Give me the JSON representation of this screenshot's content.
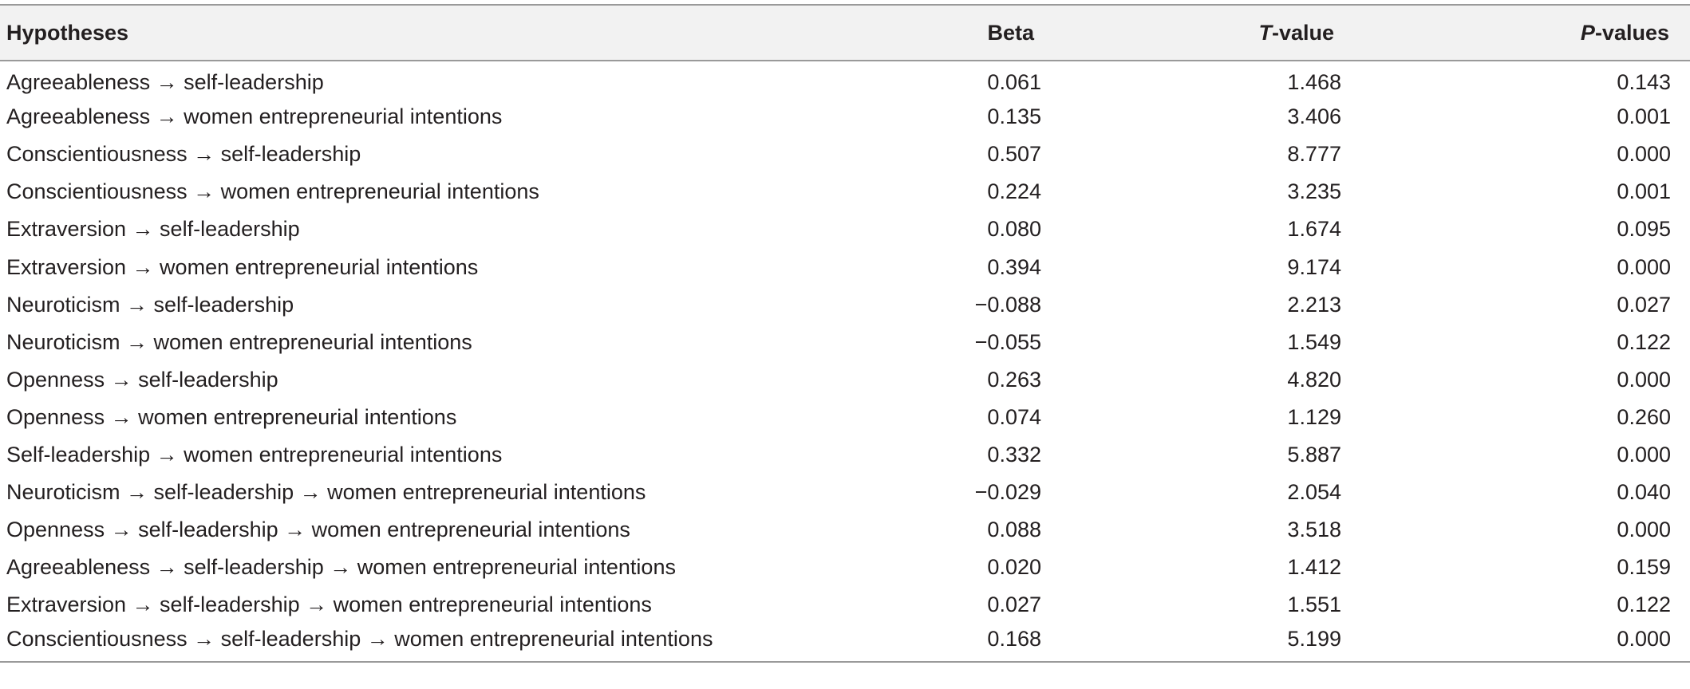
{
  "table": {
    "headers": {
      "hypotheses": "Hypotheses",
      "beta": "Beta",
      "t_prefix": "T",
      "t_suffix": "-value",
      "p_prefix": "P",
      "p_suffix": "-values"
    },
    "rows": [
      {
        "hypothesis": "Agreeableness → self-leadership",
        "beta": "0.061",
        "t": "1.468",
        "p": "0.143"
      },
      {
        "hypothesis": "Agreeableness → women entrepreneurial intentions",
        "beta": "0.135",
        "t": "3.406",
        "p": "0.001"
      },
      {
        "hypothesis": "Conscientiousness → self-leadership",
        "beta": "0.507",
        "t": "8.777",
        "p": "0.000"
      },
      {
        "hypothesis": "Conscientiousness → women entrepreneurial intentions",
        "beta": "0.224",
        "t": "3.235",
        "p": "0.001"
      },
      {
        "hypothesis": "Extraversion → self-leadership",
        "beta": "0.080",
        "t": "1.674",
        "p": "0.095"
      },
      {
        "hypothesis": "Extraversion → women entrepreneurial intentions",
        "beta": "0.394",
        "t": "9.174",
        "p": "0.000"
      },
      {
        "hypothesis": "Neuroticism → self-leadership",
        "beta": "−0.088",
        "t": "2.213",
        "p": "0.027"
      },
      {
        "hypothesis": "Neuroticism → women entrepreneurial intentions",
        "beta": "−0.055",
        "t": "1.549",
        "p": "0.122"
      },
      {
        "hypothesis": "Openness → self-leadership",
        "beta": "0.263",
        "t": "4.820",
        "p": "0.000"
      },
      {
        "hypothesis": "Openness → women entrepreneurial intentions",
        "beta": "0.074",
        "t": "1.129",
        "p": "0.260"
      },
      {
        "hypothesis": "Self-leadership → women entrepreneurial intentions",
        "beta": "0.332",
        "t": "5.887",
        "p": "0.000"
      },
      {
        "hypothesis": "Neuroticism → self-leadership → women entrepreneurial intentions",
        "beta": "−0.029",
        "t": "2.054",
        "p": "0.040"
      },
      {
        "hypothesis": "Openness → self-leadership → women entrepreneurial intentions",
        "beta": "0.088",
        "t": "3.518",
        "p": "0.000"
      },
      {
        "hypothesis": "Agreeableness → self-leadership → women entrepreneurial intentions",
        "beta": "0.020",
        "t": "1.412",
        "p": "0.159"
      },
      {
        "hypothesis": "Extraversion → self-leadership → women entrepreneurial intentions",
        "beta": "0.027",
        "t": "1.551",
        "p": "0.122"
      },
      {
        "hypothesis": "Conscientiousness → self-leadership → women entrepreneurial intentions",
        "beta": "0.168",
        "t": "5.199",
        "p": "0.000"
      }
    ]
  }
}
